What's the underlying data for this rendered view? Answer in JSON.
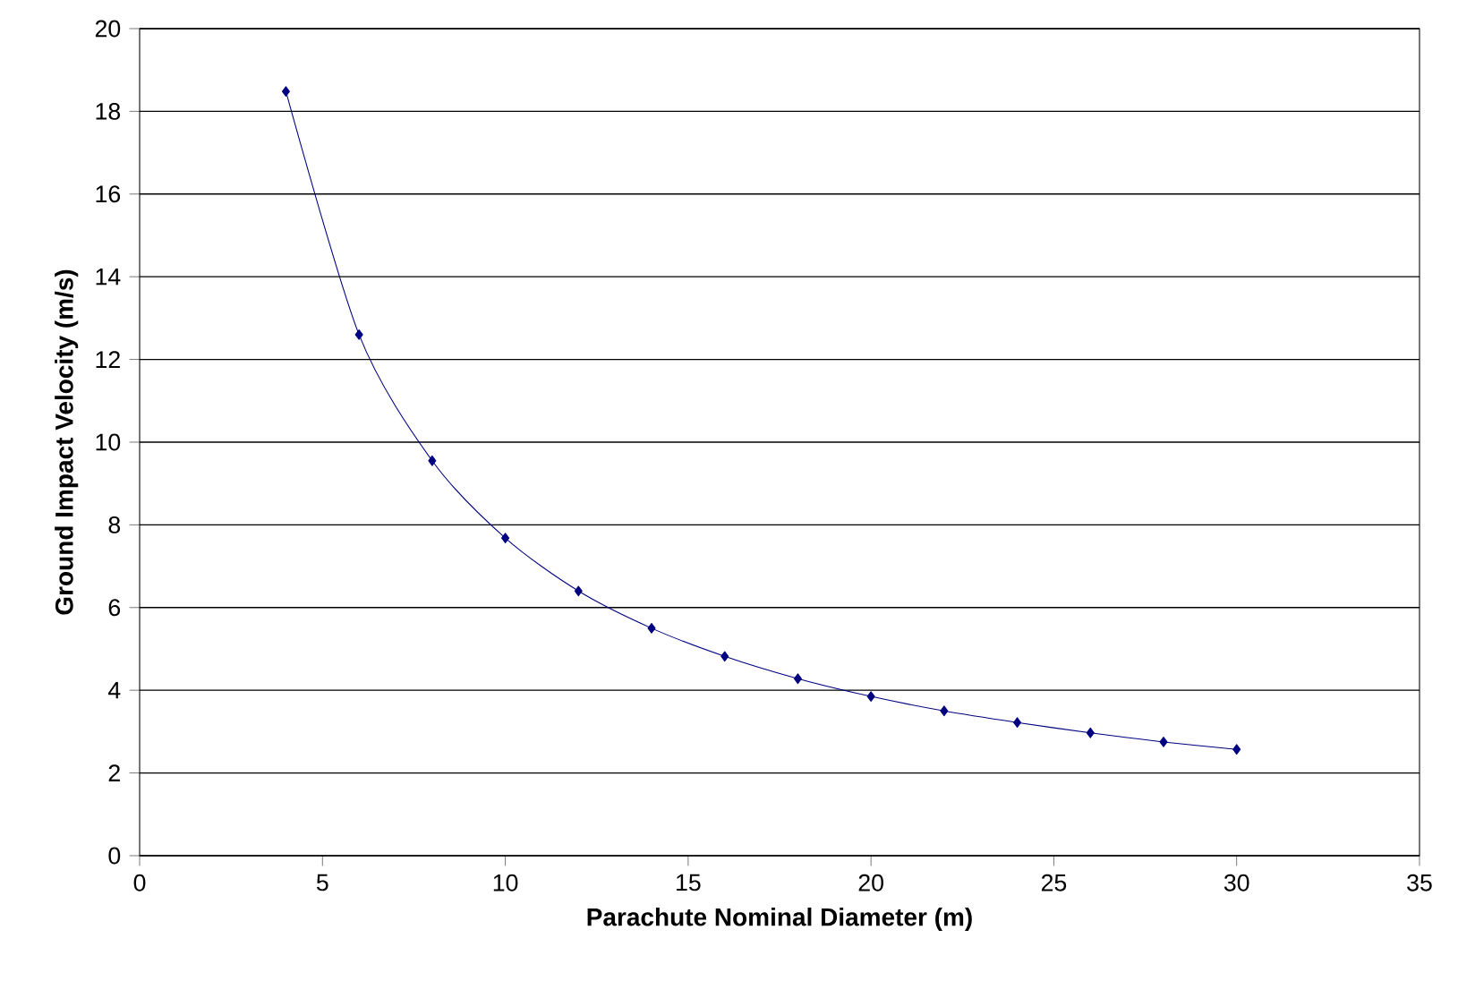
{
  "chart_data": {
    "type": "line",
    "xlabel": "Parachute Nominal Diameter (m)",
    "ylabel": "Ground Impact Velocity (m/s)",
    "x": [
      4,
      6,
      8,
      10,
      12,
      14,
      16,
      18,
      20,
      22,
      24,
      26,
      28,
      30
    ],
    "series": [
      {
        "color": "#000080",
        "values": [
          18.48,
          12.6,
          9.55,
          7.68,
          6.4,
          5.5,
          4.82,
          4.28,
          3.85,
          3.5,
          3.22,
          2.97,
          2.75,
          2.57
        ]
      }
    ],
    "xlim": [
      0,
      35
    ],
    "ylim": [
      0,
      20
    ],
    "xticks": [
      0,
      5,
      10,
      15,
      20,
      25,
      30,
      35
    ],
    "yticks": [
      0,
      2,
      4,
      6,
      8,
      10,
      12,
      14,
      16,
      18,
      20
    ],
    "grid": "y",
    "marker": "diamond"
  }
}
